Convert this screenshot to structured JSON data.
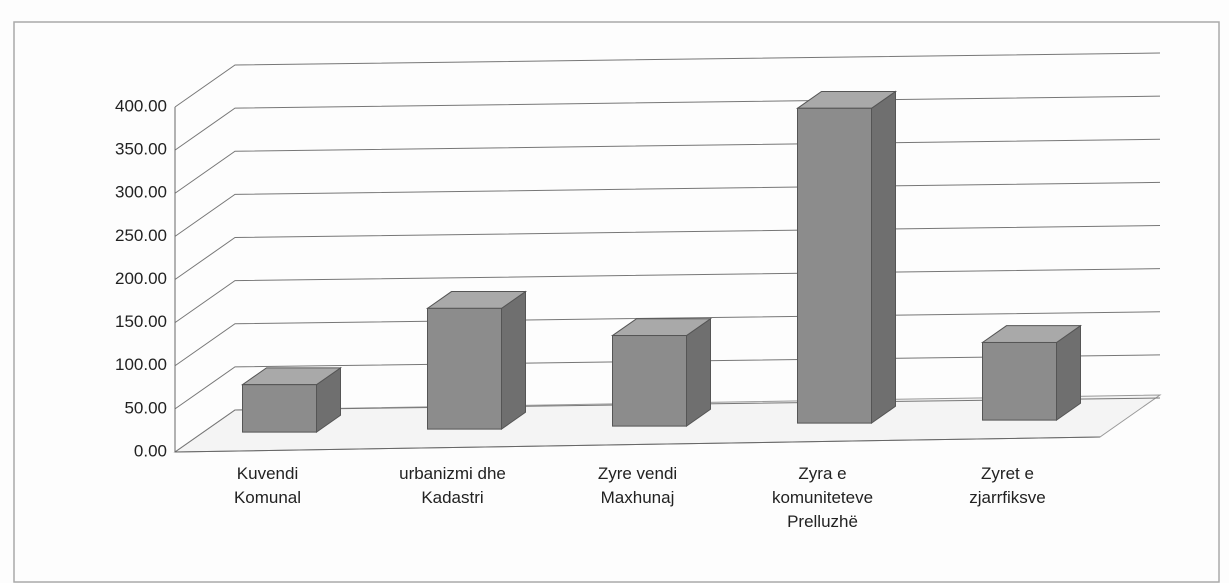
{
  "chart_data": {
    "type": "bar",
    "categories": [
      "Kuvendi Komunal",
      "urbanizmi dhe Kadastri",
      "Zyre vendi Maxhunaj",
      "Zyra e komuniteteve Prelluzhë",
      "Zyret e zjarrfiksve"
    ],
    "values": [
      55,
      140,
      105,
      365,
      90
    ],
    "color": "#8c8c8c",
    "ylim": [
      0,
      400
    ],
    "yticks": [
      {
        "value": 0,
        "label": "0.00"
      },
      {
        "value": 50,
        "label": "50.00"
      },
      {
        "value": 100,
        "label": "100.00"
      },
      {
        "value": 150,
        "label": "150.00"
      },
      {
        "value": 200,
        "label": "200.00"
      },
      {
        "value": 250,
        "label": "250.00"
      },
      {
        "value": 300,
        "label": "300.00"
      },
      {
        "value": 350,
        "label": "350.00"
      },
      {
        "value": 400,
        "label": "400.00"
      }
    ],
    "grid": true
  }
}
